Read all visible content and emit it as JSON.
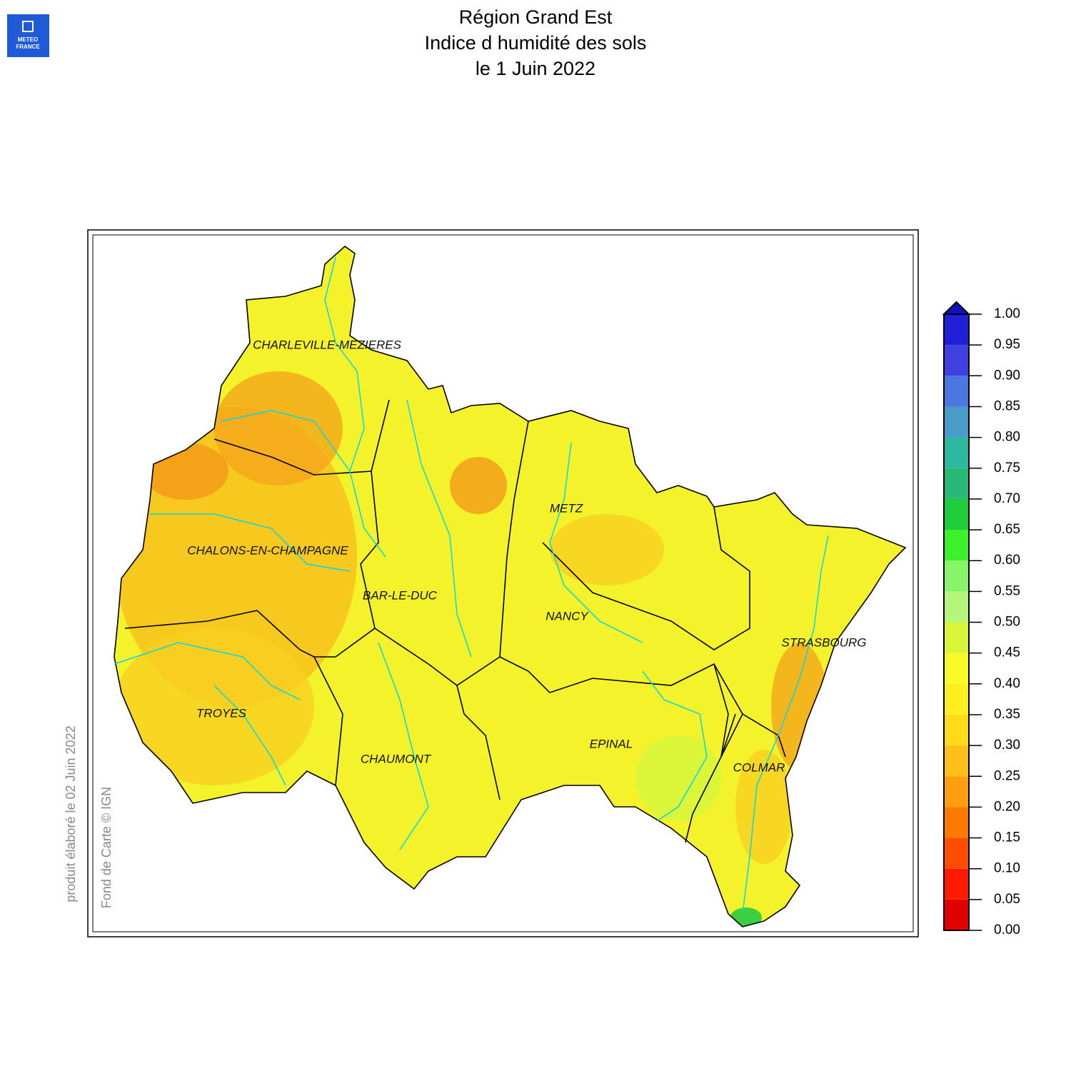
{
  "logo": {
    "line1": "METEO",
    "line2": "FRANCE"
  },
  "title": [
    "Région Grand Est",
    "Indice d humidité des sols",
    "le 1 Juin 2022"
  ],
  "cities": [
    "CHARLEVILLE-MEZIERES",
    "METZ",
    "CHALONS-EN-CHAMPAGNE",
    "BAR-LE-DUC",
    "NANCY",
    "STRASBOURG",
    "TROYES",
    "EPINAL",
    "CHAUMONT",
    "COLMAR"
  ],
  "side_notes": [
    "produit élaboré le 02 Juin 2022",
    "Fond de Carte © IGN"
  ],
  "colorbar": {
    "ticks": [
      {
        "value": 0,
        "label": "0.00"
      },
      {
        "value": 0.05,
        "label": "0.05"
      },
      {
        "value": 0.1,
        "label": "0.10"
      },
      {
        "value": 0.15,
        "label": "0.15"
      },
      {
        "value": 0.2,
        "label": "0.20"
      },
      {
        "value": 0.25,
        "label": "0.25"
      },
      {
        "value": 0.3,
        "label": "0.30"
      },
      {
        "value": 0.35,
        "label": "0.35"
      },
      {
        "value": 0.4,
        "label": "0.40"
      },
      {
        "value": 0.45,
        "label": "0.45"
      },
      {
        "value": 0.5,
        "label": "0.50"
      },
      {
        "value": 0.55,
        "label": "0.55"
      },
      {
        "value": 0.6,
        "label": "0.60"
      },
      {
        "value": 0.65,
        "label": "0.65"
      },
      {
        "value": 0.7,
        "label": "0.70"
      },
      {
        "value": 0.75,
        "label": "0.75"
      },
      {
        "value": 0.8,
        "label": "0.80"
      },
      {
        "value": 0.85,
        "label": "0.85"
      },
      {
        "value": 0.9,
        "label": "0.90"
      },
      {
        "value": 0.95,
        "label": "0.95"
      },
      {
        "value": 1,
        "label": "1.00"
      }
    ],
    "colors": [
      "#e00000",
      "#ff1a00",
      "#ff4d00",
      "#ff7a00",
      "#ff9f10",
      "#ffbf1a",
      "#ffdb1a",
      "#ffee20",
      "#f7fa26",
      "#d8f53a",
      "#b4f57a",
      "#86f56a",
      "#3cf02a",
      "#1ecc3c",
      "#2ab878",
      "#2fb8a0",
      "#4a9cc8",
      "#4a78e0",
      "#4040e0",
      "#2020d8"
    ],
    "over_color": "#1010c0"
  }
}
